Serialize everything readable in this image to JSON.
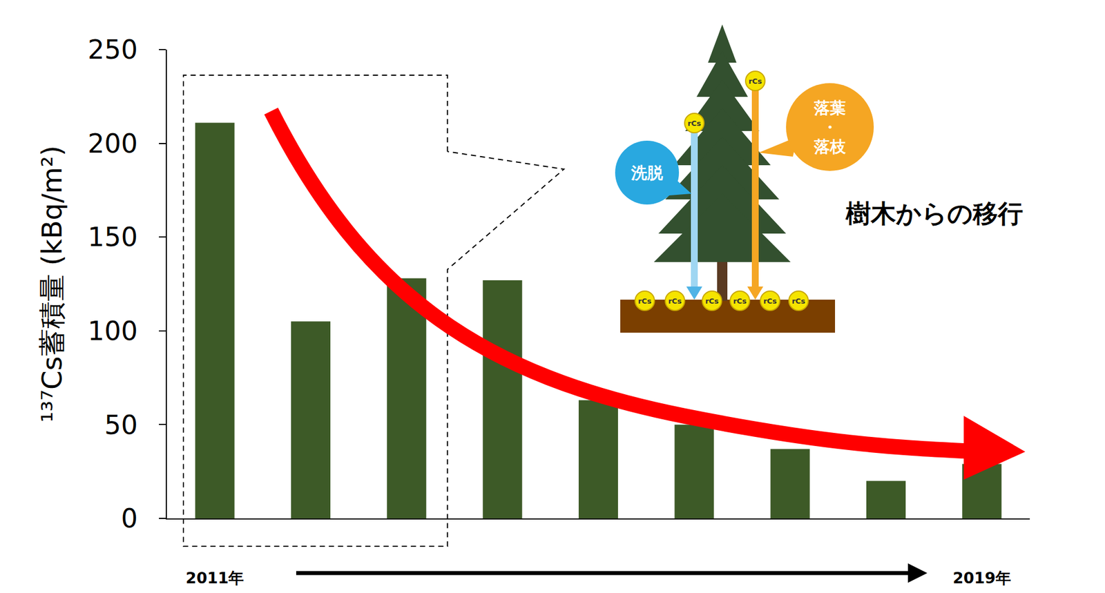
{
  "chart_data": {
    "type": "bar",
    "y_label": "¹³⁷Cs蓄積量 (kBq/m²)",
    "categories": [
      "2011年",
      null,
      null,
      null,
      null,
      null,
      null,
      null,
      "2019年"
    ],
    "values": [
      211,
      105,
      128,
      127,
      63,
      50,
      37,
      20,
      29
    ],
    "color": "#3d5a27",
    "ylim": [
      0,
      250
    ],
    "yticks": [
      0,
      50,
      100,
      150,
      200,
      250
    ],
    "grid": false,
    "annotations": [
      "洗脱",
      "落葉・落枝",
      "樹木からの移行",
      "rCs"
    ]
  }
}
